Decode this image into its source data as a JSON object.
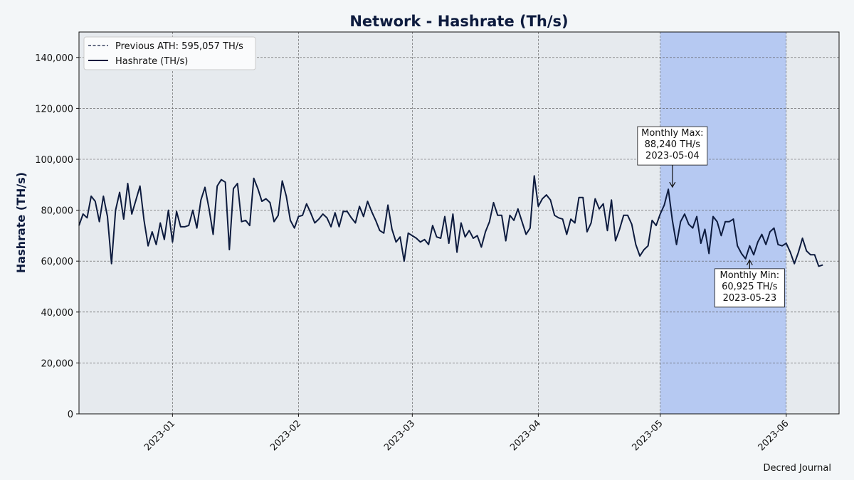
{
  "chart_data": {
    "type": "line",
    "title": "Network - Hashrate (Th/s)",
    "ylabel": "Hashrate (TH/s)",
    "xlabel": "",
    "ylim": [
      0,
      150000
    ],
    "xlim": [
      "2022-12-09",
      "2023-06-14"
    ],
    "grid": true,
    "legend_position": "top-left",
    "yticks": [
      0,
      20000,
      40000,
      60000,
      80000,
      100000,
      120000,
      140000
    ],
    "ytick_labels": [
      "0",
      "20,000",
      "40,000",
      "60,000",
      "80,000",
      "100,000",
      "120,000",
      "140,000"
    ],
    "xticks": [
      "2023-01-01",
      "2023-02-01",
      "2023-03-01",
      "2023-04-01",
      "2023-05-01",
      "2023-06-01"
    ],
    "xtick_labels": [
      "2023-01",
      "2023-02",
      "2023-03",
      "2023-04",
      "2023-05",
      "2023-06"
    ],
    "highlight_span": {
      "start": "2023-05-01",
      "end": "2023-06-01"
    },
    "legend": [
      {
        "label": "Previous ATH: 595,057 TH/s",
        "style": "dashed"
      },
      {
        "label": "Hashrate (TH/s)",
        "style": "solid"
      }
    ],
    "annotations": [
      {
        "lines": [
          "Monthly Max:",
          "88,240 TH/s",
          "2023-05-04"
        ],
        "date": "2023-05-04",
        "value": 88240,
        "arrow": "down"
      },
      {
        "lines": [
          "Monthly Min:",
          "60,925 TH/s",
          "2023-05-23"
        ],
        "date": "2023-05-23",
        "value": 60925,
        "arrow": "up"
      }
    ],
    "series": [
      {
        "name": "Hashrate (TH/s)",
        "color": "#0d1b3e",
        "start_date": "2022-12-09",
        "values": [
          74000,
          78500,
          77000,
          85500,
          83500,
          75500,
          85500,
          77500,
          59000,
          80000,
          87000,
          76500,
          90500,
          78500,
          84000,
          89500,
          76000,
          66000,
          71500,
          66500,
          75000,
          68500,
          80000,
          67500,
          79500,
          73500,
          73500,
          74000,
          80000,
          73000,
          84000,
          89000,
          80500,
          70500,
          89500,
          92000,
          91000,
          64500,
          88500,
          90500,
          75500,
          76000,
          74000,
          92500,
          88500,
          83500,
          84500,
          83000,
          75500,
          78000,
          91500,
          85500,
          76000,
          73000,
          77500,
          78000,
          82500,
          79000,
          75000,
          76500,
          78500,
          77000,
          73500,
          79000,
          73500,
          79500,
          79500,
          77000,
          75000,
          81500,
          77500,
          83500,
          79500,
          76000,
          72000,
          71000,
          82000,
          72500,
          67500,
          69500,
          60000,
          71000,
          70000,
          69000,
          67500,
          68500,
          66500,
          74000,
          69500,
          69000,
          77500,
          67000,
          78500,
          63500,
          75000,
          69500,
          72000,
          69000,
          70000,
          65500,
          71500,
          75500,
          83000,
          78000,
          78000,
          68000,
          78000,
          76000,
          80500,
          75500,
          70500,
          73000,
          93500,
          81500,
          84500,
          86000,
          84000,
          78000,
          77000,
          76500,
          70500,
          76500,
          75000,
          85000,
          85000,
          71500,
          75000,
          84500,
          80500,
          82500,
          72000,
          84000,
          68000,
          72500,
          78000,
          78000,
          74500,
          66500,
          62000,
          64500,
          66000,
          76000,
          74000,
          78500,
          82000,
          88240,
          76000,
          66500,
          75500,
          78500,
          74500,
          73000,
          77500,
          67000,
          72500,
          63000,
          77500,
          75500,
          70000,
          75500,
          75500,
          76500,
          66000,
          63000,
          60925,
          66000,
          62500,
          67500,
          70500,
          66500,
          71500,
          73000,
          66500,
          66000,
          67000,
          63500,
          59000,
          63500,
          69000,
          64000,
          62500,
          62500,
          58000,
          58500
        ]
      }
    ]
  },
  "footer": {
    "credit": "Decred Journal"
  }
}
